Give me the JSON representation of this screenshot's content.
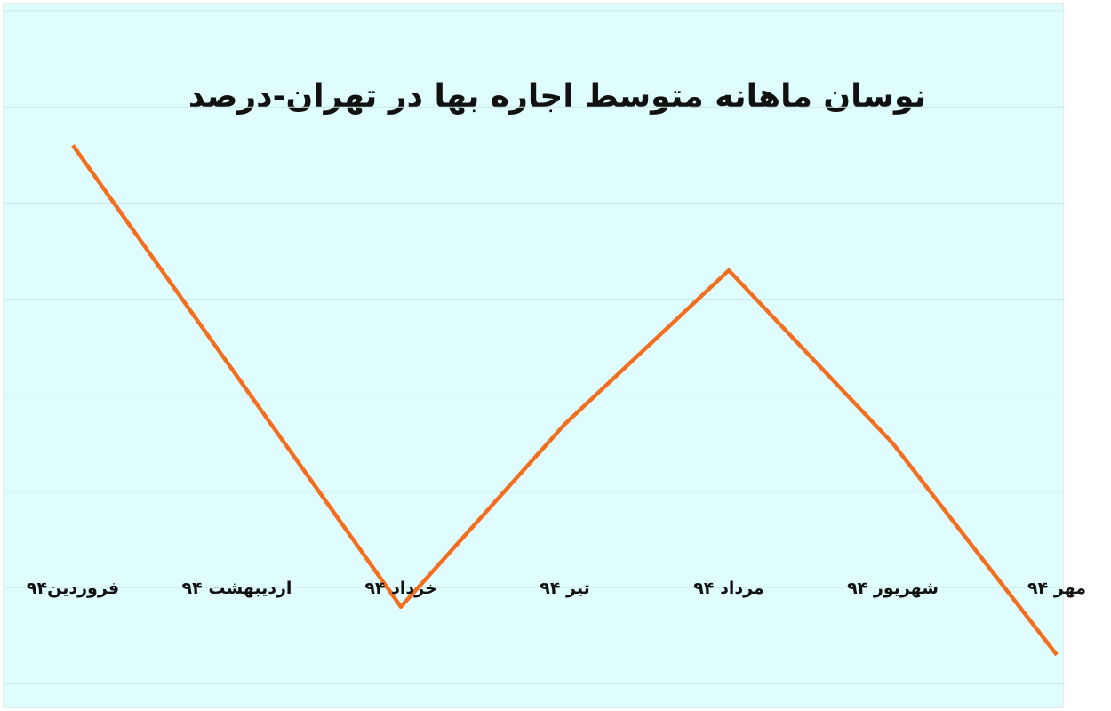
{
  "chart_data": {
    "type": "line",
    "title": "نوسان ماهانه متوسط اجاره بها در تهران-درصد",
    "xlabel": "",
    "ylabel": "",
    "categories": [
      "فروردین۹۴",
      "اردیبهشت ۹۴",
      "خرداد ۹۴",
      "تیر ۹۴",
      "مرداد ۹۴",
      "شهریور ۹۴",
      "مهر ۹۴"
    ],
    "series": [
      {
        "name": "",
        "values": [
          4.6,
          2.2,
          -0.2,
          1.7,
          3.3,
          1.5,
          -0.7
        ]
      }
    ],
    "ylim": [
      -1.2,
      6
    ],
    "y_gridlines": [
      -1,
      0,
      1,
      2,
      3,
      4,
      5,
      6
    ],
    "grid": true,
    "legend": "none",
    "colors": {
      "line": "#f26f21",
      "grid": "#c8eaea",
      "background": "#dffdfd"
    }
  }
}
